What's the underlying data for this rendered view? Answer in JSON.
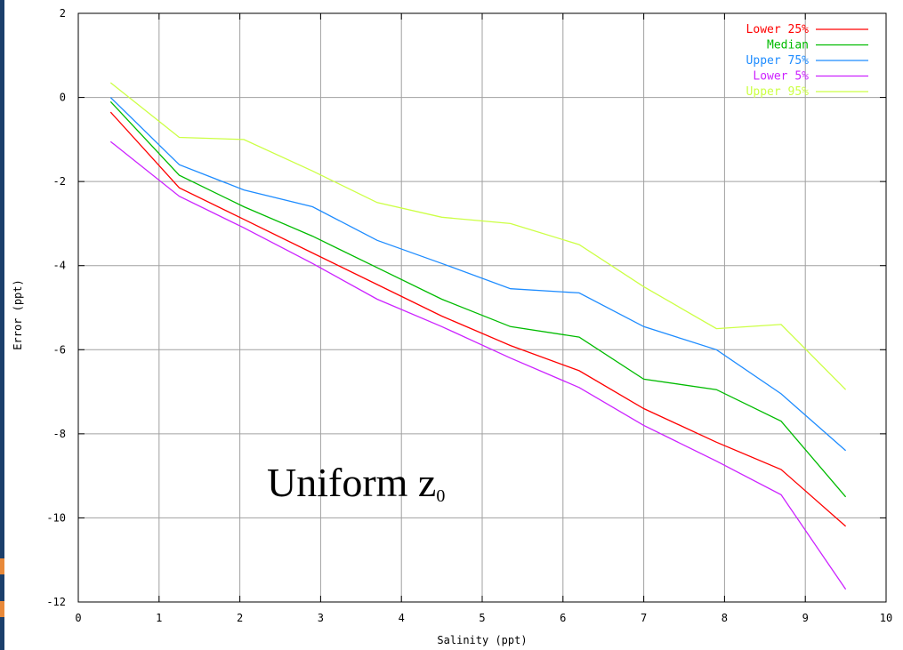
{
  "chart_data": {
    "type": "line",
    "title": "",
    "xlabel": "Salinity (ppt)",
    "ylabel": "Error (ppt)",
    "xlim": [
      0,
      10
    ],
    "ylim": [
      -12,
      2
    ],
    "xticks": [
      "0",
      "1",
      "2",
      "3",
      "4",
      "5",
      "6",
      "7",
      "8",
      "9",
      "10"
    ],
    "yticks": [
      "2",
      "0",
      "-2",
      "-4",
      "-6",
      "-8",
      "-10",
      "-12"
    ],
    "grid": true,
    "legend_position": "top-right",
    "annotation": {
      "main": "Uniform z",
      "subscript": "0"
    },
    "x": [
      0.4,
      1.25,
      2.05,
      2.9,
      3.7,
      4.5,
      5.35,
      6.2,
      7.0,
      7.9,
      8.7,
      9.5
    ],
    "series": [
      {
        "name": "Lower 25%",
        "color": "#ff0000",
        "values": [
          -0.35,
          -2.15,
          -2.9,
          -3.7,
          -4.45,
          -5.2,
          -5.9,
          -6.5,
          -7.4,
          -8.2,
          -8.85,
          -10.2
        ]
      },
      {
        "name": "Median",
        "color": "#00bb00",
        "values": [
          -0.1,
          -1.85,
          -2.6,
          -3.3,
          -4.05,
          -4.8,
          -5.45,
          -5.7,
          -6.7,
          -6.95,
          -7.7,
          -9.5
        ]
      },
      {
        "name": "Upper 75%",
        "color": "#1e8cff",
        "values": [
          0.0,
          -1.6,
          -2.2,
          -2.6,
          -3.4,
          -3.95,
          -4.55,
          -4.65,
          -5.45,
          -6.0,
          -7.05,
          -8.4
        ]
      },
      {
        "name": "Lower  5%",
        "color": "#cc22ff",
        "values": [
          -1.05,
          -2.35,
          -3.1,
          -3.95,
          -4.8,
          -5.45,
          -6.2,
          -6.9,
          -7.8,
          -8.65,
          -9.45,
          -11.7
        ]
      },
      {
        "name": "Upper 95%",
        "color": "#ccff44",
        "values": [
          0.35,
          -0.95,
          -1.0,
          -1.75,
          -2.5,
          -2.85,
          -3.0,
          -3.5,
          -4.5,
          -5.5,
          -5.4,
          -6.95
        ]
      }
    ]
  }
}
